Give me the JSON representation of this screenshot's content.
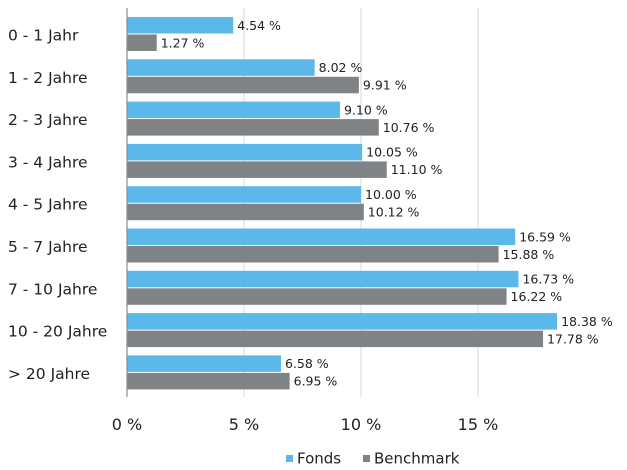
{
  "chart_data": {
    "type": "bar",
    "orientation": "horizontal",
    "categories": [
      "0 - 1 Jahr",
      "1 - 2 Jahre",
      "2 - 3 Jahre",
      "3 - 4 Jahre",
      "4 - 5 Jahre",
      "5 - 7 Jahre",
      "7 - 10 Jahre",
      "10 - 20 Jahre",
      "> 20 Jahre"
    ],
    "series": [
      {
        "name": "Fonds",
        "color": "#5bb8e8",
        "values": [
          4.54,
          8.02,
          9.1,
          10.05,
          10.0,
          16.59,
          16.73,
          18.38,
          6.58
        ],
        "labels": [
          "4.54 %",
          "8.02 %",
          "9.10 %",
          "10.05 %",
          "10.00 %",
          "16.59 %",
          "16.73 %",
          "18.38 %",
          "6.58 %"
        ]
      },
      {
        "name": "Benchmark",
        "color": "#7f8385",
        "values": [
          1.27,
          9.91,
          10.76,
          11.1,
          10.12,
          15.88,
          16.22,
          17.78,
          6.95
        ],
        "labels": [
          "1.27 %",
          "9.91 %",
          "10.76 %",
          "11.10 %",
          "10.12 %",
          "15.88 %",
          "16.22 %",
          "17.78 %",
          "6.95 %"
        ]
      }
    ],
    "x_ticks": [
      0,
      5,
      10,
      15
    ],
    "x_tick_labels": [
      "0 %",
      "5 %",
      "10 %",
      "15 %"
    ],
    "xlim": [
      0,
      20
    ],
    "grid": "vertical",
    "legend": "bottom-right",
    "title": "",
    "xlabel": "",
    "ylabel": ""
  }
}
